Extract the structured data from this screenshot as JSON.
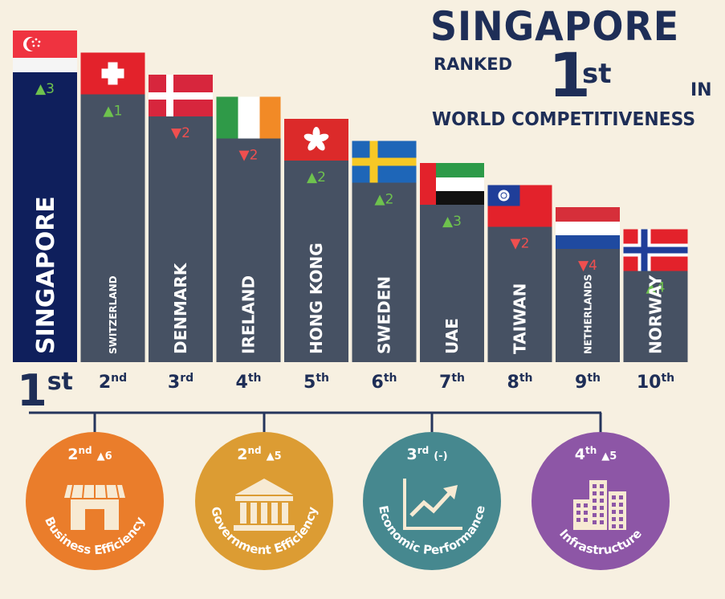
{
  "header": {
    "main": "SINGAPORE",
    "ranked": "RANKED",
    "rank_num": "1",
    "rank_suffix": "st",
    "in": "IN",
    "subtitle": "WORLD COMPETITIVENESS"
  },
  "chart_data": {
    "type": "bar",
    "categories": [
      "SINGAPORE",
      "SWITZERLAND",
      "DENMARK",
      "IRELAND",
      "HONG KONG",
      "SWEDEN",
      "UAE",
      "TAIWAN",
      "NETHERLANDS",
      "NORWAY"
    ],
    "ranks": [
      1,
      2,
      3,
      4,
      5,
      6,
      7,
      8,
      9,
      10
    ],
    "rank_labels": [
      {
        "num": "1",
        "suffix": "st"
      },
      {
        "num": "2",
        "suffix": "nd"
      },
      {
        "num": "3",
        "suffix": "rd"
      },
      {
        "num": "4",
        "suffix": "th"
      },
      {
        "num": "5",
        "suffix": "th"
      },
      {
        "num": "6",
        "suffix": "th"
      },
      {
        "num": "7",
        "suffix": "th"
      },
      {
        "num": "8",
        "suffix": "th"
      },
      {
        "num": "9",
        "suffix": "th"
      },
      {
        "num": "10",
        "suffix": "th"
      }
    ],
    "changes": [
      {
        "dir": "up",
        "value": "3"
      },
      {
        "dir": "up",
        "value": "1"
      },
      {
        "dir": "down",
        "value": "2"
      },
      {
        "dir": "down",
        "value": "2"
      },
      {
        "dir": "up",
        "value": "2"
      },
      {
        "dir": "up",
        "value": "2"
      },
      {
        "dir": "up",
        "value": "3"
      },
      {
        "dir": "down",
        "value": "2"
      },
      {
        "dir": "down",
        "value": "4"
      },
      {
        "dir": "up",
        "value": "4"
      }
    ],
    "flags": [
      "singapore-flag",
      "switzerland-flag",
      "denmark-flag",
      "ireland-flag",
      "hong-kong-flag",
      "sweden-flag",
      "uae-flag",
      "taiwan-flag",
      "netherlands-flag",
      "norway-flag"
    ],
    "bar_colors": {
      "leader": "#0f1f5c",
      "others": "#465163"
    },
    "change_colors": {
      "up": "#6ec24e",
      "down": "#ef4f4f"
    }
  },
  "factors": [
    {
      "rank_num": "2",
      "rank_suffix": "nd",
      "change": "▲6",
      "label": "Business Efficiency",
      "color": "#ea7d2b",
      "icon": "storefront-icon"
    },
    {
      "rank_num": "2",
      "rank_suffix": "nd",
      "change": "▲5",
      "label": "Government Efficiency",
      "color": "#dc9c33",
      "icon": "government-building-icon"
    },
    {
      "rank_num": "3",
      "rank_suffix": "rd",
      "change": "(-)",
      "label": "Economic Performance",
      "color": "#46888f",
      "icon": "growth-chart-icon"
    },
    {
      "rank_num": "4",
      "rank_suffix": "th",
      "change": "▲5",
      "label": "Infrastructure",
      "color": "#8d56a6",
      "icon": "city-buildings-icon"
    }
  ],
  "colors": {
    "background": "#f7f0e1",
    "title": "#1e2e57",
    "connector": "#25355c"
  }
}
